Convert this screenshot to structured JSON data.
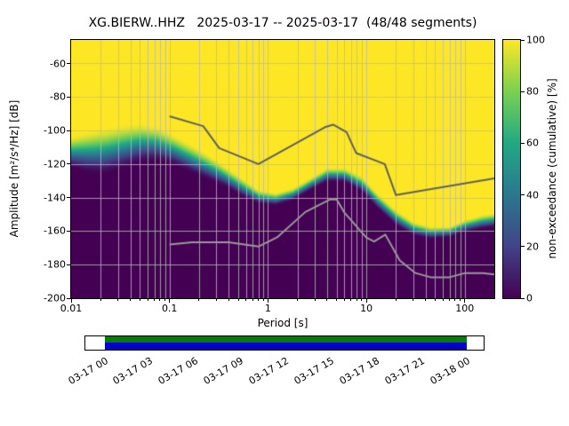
{
  "title": "XG.BIERW..HHZ   2025-03-17 -- 2025-03-17  (48/48 segments)",
  "axes": {
    "xlabel": "Period [s]",
    "ylabel": "Amplitude [m²/s⁴/Hz] [dB]",
    "x_tick_labels": [
      "0.01",
      "0.1",
      "1",
      "10",
      "100"
    ],
    "y_tick_labels": [
      "-60",
      "-80",
      "-100",
      "-120",
      "-140",
      "-160",
      "-180",
      "-200"
    ]
  },
  "colorbar": {
    "label": "non-exceedance (cumulative) [%]",
    "tick_labels": [
      "0",
      "20",
      "40",
      "60",
      "80",
      "100"
    ]
  },
  "timeline": {
    "tick_labels": [
      "03-17 00",
      "03-17 03",
      "03-17 06",
      "03-17 09",
      "03-17 12",
      "03-17 15",
      "03-17 18",
      "03-17 21",
      "03-18 00"
    ],
    "coverage_top_color": "#008000",
    "coverage_bottom_color": "#0000cd"
  },
  "chart_data": {
    "type": "heatmap",
    "title": "XG.BIERW..HHZ   2025-03-17 -- 2025-03-17  (48/48 segments)",
    "xlabel": "Period [s]",
    "ylabel": "Amplitude [m²/s⁴/Hz] [dB]",
    "colorbar_label": "non-exceedance (cumulative) [%]",
    "x_scale": "log",
    "xlim": [
      0.01,
      200
    ],
    "ylim": [
      -200,
      -46
    ],
    "grid": true,
    "segments_used": 48,
    "segments_total": 48,
    "colormap": "viridis",
    "colormap_stops": [
      [
        0,
        "#440154"
      ],
      [
        0.2,
        "#414487"
      ],
      [
        0.4,
        "#2a788e"
      ],
      [
        0.6,
        "#22a884"
      ],
      [
        0.8,
        "#7ad151"
      ],
      [
        1,
        "#fde725"
      ]
    ],
    "distribution": {
      "description": "PPSD non-exceedance band per period: dB where cumulative probability reaches ~95% (upper, yellow boundary) and ~5% (lower, purple boundary).",
      "periods_s": [
        0.01,
        0.015,
        0.022,
        0.033,
        0.05,
        0.075,
        0.11,
        0.17,
        0.25,
        0.37,
        0.55,
        0.8,
        1.2,
        1.8,
        2.7,
        4,
        6,
        9,
        13,
        20,
        30,
        45,
        70,
        100,
        150,
        200
      ],
      "db_at_95pct": [
        -103,
        -100,
        -98,
        -96,
        -95,
        -97,
        -102,
        -108,
        -114,
        -121,
        -128,
        -135,
        -137,
        -134,
        -128,
        -122,
        -122,
        -127,
        -137,
        -147,
        -154,
        -157,
        -157,
        -153,
        -150,
        -149
      ],
      "db_at_5pct": [
        -123,
        -126,
        -127,
        -124,
        -120,
        -119,
        -121,
        -126,
        -130,
        -134,
        -140,
        -144,
        -145,
        -142,
        -136,
        -131,
        -131,
        -137,
        -147,
        -157,
        -163,
        -165,
        -164,
        -161,
        -159,
        -158
      ]
    },
    "noise_models": {
      "high_color": "#5f5f5f",
      "low_color": "#9a9a9a",
      "nhnm": [
        [
          0.1,
          -91.5
        ],
        [
          0.22,
          -97.4
        ],
        [
          0.32,
          -110.5
        ],
        [
          0.8,
          -120
        ],
        [
          3.8,
          -98
        ],
        [
          4.6,
          -96.5
        ],
        [
          6.3,
          -101
        ],
        [
          7.9,
          -113.5
        ],
        [
          15.4,
          -120
        ],
        [
          20,
          -138.5
        ],
        [
          200,
          -128.5
        ]
      ],
      "nlnm": [
        [
          0.1,
          -168
        ],
        [
          0.17,
          -166.7
        ],
        [
          0.4,
          -166.7
        ],
        [
          0.8,
          -169.2
        ],
        [
          1.24,
          -163.7
        ],
        [
          2.4,
          -148.6
        ],
        [
          4.3,
          -141.1
        ],
        [
          5,
          -141.1
        ],
        [
          6,
          -149
        ],
        [
          10,
          -163.8
        ],
        [
          12,
          -166.2
        ],
        [
          15.6,
          -162.1
        ],
        [
          21.9,
          -177.5
        ],
        [
          31.6,
          -185
        ],
        [
          45,
          -187.5
        ],
        [
          70,
          -187.5
        ],
        [
          101,
          -185
        ],
        [
          154,
          -185
        ],
        [
          200,
          -185.9
        ]
      ]
    }
  }
}
